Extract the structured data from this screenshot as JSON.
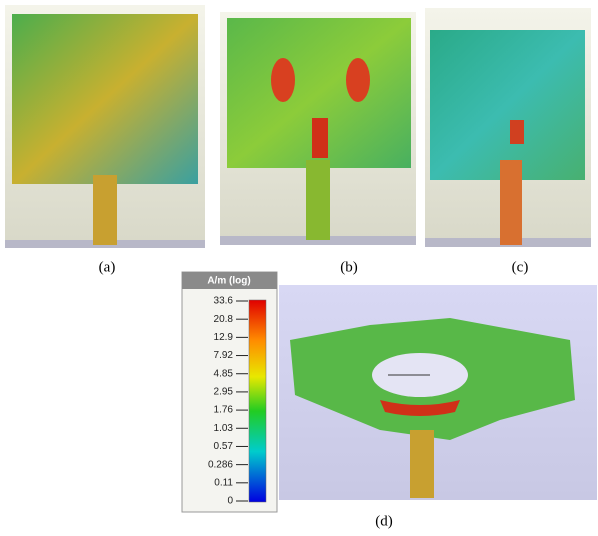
{
  "panels": [
    {
      "label": "(a)"
    },
    {
      "label": "(b)"
    },
    {
      "label": "(c)"
    },
    {
      "label": "(d)"
    }
  ],
  "colorbar": {
    "title": "A/m (log)",
    "ticks": [
      "33.6",
      "20.8",
      "12.9",
      "7.92",
      "4.85",
      "2.95",
      "1.76",
      "1.03",
      "0.57",
      "0.286",
      "0.11",
      "0"
    ]
  }
}
